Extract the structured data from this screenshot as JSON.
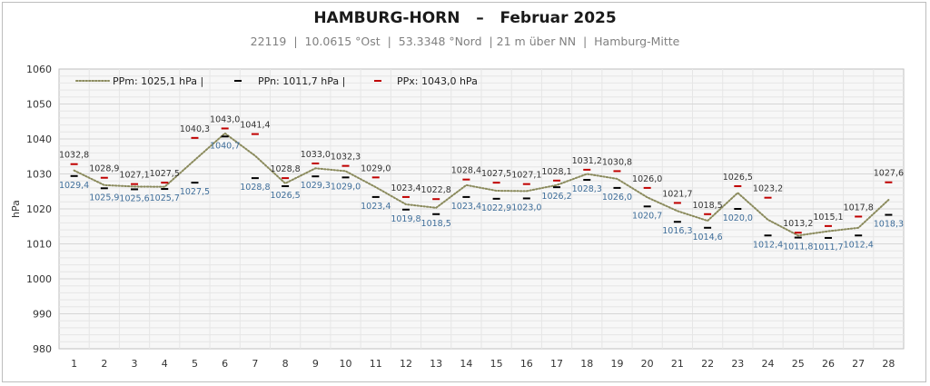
{
  "title": "HAMBURG-HORN   –   Februar 2025",
  "subtitle": "22119  |  10.0615 °Ost  |  53.3348 °Nord  | 21 m über NN  |  Hamburg-Mitte",
  "colors": {
    "mean": "#8a8a5c",
    "min": "#000000",
    "max": "#c00000",
    "grid": "#d6d6d6",
    "minlabel": "#3f6e9a"
  },
  "chart_data": {
    "type": "line",
    "ylabel": "hPa",
    "ylim": [
      980,
      1060
    ],
    "yticks": [
      980,
      990,
      1000,
      1010,
      1020,
      1030,
      1040,
      1050,
      1060
    ],
    "categories": [
      "1",
      "2",
      "3",
      "4",
      "5",
      "6",
      "7",
      "8",
      "9",
      "10",
      "11",
      "12",
      "13",
      "14",
      "15",
      "16",
      "17",
      "18",
      "19",
      "20",
      "21",
      "22",
      "23",
      "24",
      "25",
      "26",
      "27",
      "28"
    ],
    "legend": [
      {
        "key": "mean",
        "text": "PPm: 1025,1 hPa   |"
      },
      {
        "key": "min",
        "text": "PPn: 1011,7 hPa   |"
      },
      {
        "key": "max",
        "text": "PPx: 1043,0 hPa"
      }
    ],
    "series": [
      {
        "key": "mean",
        "values": [
          1031.0,
          1026.8,
          1026.4,
          1026.3,
          1034.0,
          1041.6,
          1035.2,
          1027.3,
          1031.6,
          1030.8,
          1026.2,
          1021.3,
          1020.3,
          1026.8,
          1025.2,
          1025.1,
          1026.8,
          1030.0,
          1028.6,
          1023.3,
          1019.4,
          1016.6,
          1024.6,
          1016.9,
          1012.4,
          1013.6,
          1014.6,
          1022.6
        ]
      },
      {
        "key": "min",
        "values": [
          1029.4,
          1025.9,
          1025.6,
          1025.7,
          1027.5,
          1040.7,
          1028.8,
          1026.5,
          1029.3,
          1029.0,
          1023.4,
          1019.8,
          1018.5,
          1023.4,
          1022.9,
          1023.0,
          1026.2,
          1028.3,
          1026.0,
          1020.7,
          1016.3,
          1014.6,
          1020.0,
          1012.4,
          1011.8,
          1011.7,
          1012.4,
          1018.3
        ],
        "labels": [
          "1029,4",
          "1025,9",
          "1025,6",
          "1025,7",
          "1027,5",
          "1040,7",
          "1028,8",
          "1026,5",
          "1029,3",
          "1029,0",
          "1023,4",
          "1019,8",
          "1018,5",
          "1023,4",
          "1022,9",
          "1023,0",
          "1026,2",
          "1028,3",
          "1026,0",
          "1020,7",
          "1016,3",
          "1014,6",
          "1020,0",
          "1012,4",
          "1011,8",
          "1011,7",
          "1012,4",
          "1018,3"
        ]
      },
      {
        "key": "max",
        "values": [
          1032.8,
          1028.9,
          1027.1,
          1027.5,
          1040.3,
          1043.0,
          1041.4,
          1028.8,
          1033.0,
          1032.3,
          1029.0,
          1023.4,
          1022.8,
          1028.4,
          1027.5,
          1027.1,
          1028.1,
          1031.2,
          1030.8,
          1026.0,
          1021.7,
          1018.5,
          1026.5,
          1023.2,
          1013.2,
          1015.1,
          1017.8,
          1027.6
        ],
        "labels": [
          "1032,8",
          "1028,9",
          "1027,1",
          "1027,5",
          "1040,3",
          "1043,0",
          "1041,4",
          "1028,8",
          "1033,0",
          "1032,3",
          "1029,0",
          "1023,4",
          "1022,8",
          "1028,4",
          "1027,5",
          "1027,1",
          "1028,1",
          "1031,2",
          "1030,8",
          "1026,0",
          "1021,7",
          "1018,5",
          "1026,5",
          "1023,2",
          "1013,2",
          "1015,1",
          "1017,8",
          "1027,6"
        ]
      }
    ]
  }
}
